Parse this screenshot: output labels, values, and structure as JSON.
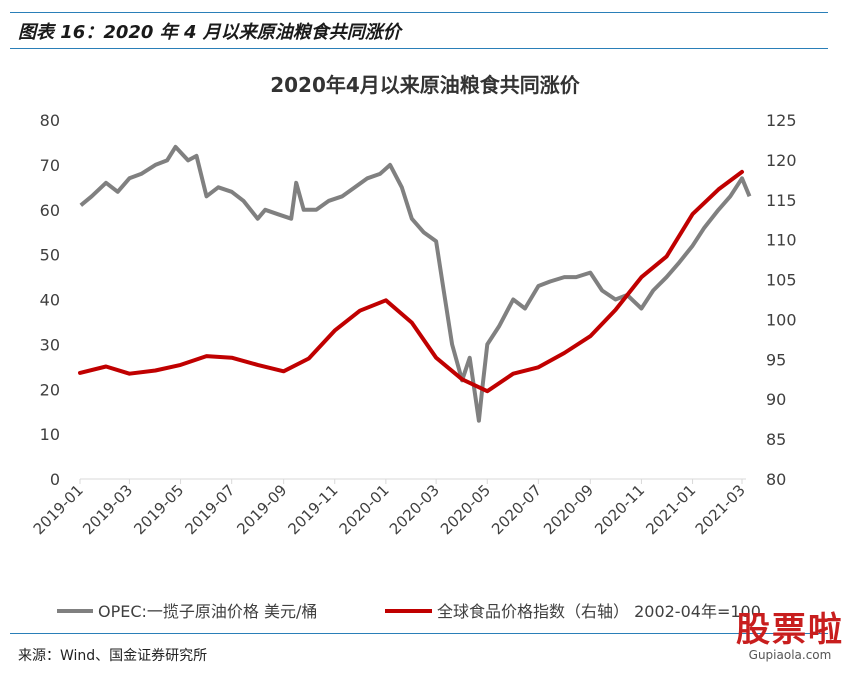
{
  "header": {
    "figure_title": "图表 16：2020 年 4 月以来原油粮食共同涨价"
  },
  "footer": {
    "source": "来源：Wind、国金证券研究所"
  },
  "watermark": {
    "text": "股票啦",
    "sub": "Gupiaola.com"
  },
  "colors": {
    "oil": "#808080",
    "food": "#c00000",
    "axis": "#d9d9d9",
    "rule": "#2a7fb8"
  },
  "chart_data": {
    "type": "line",
    "title": "2020年4月以来原油粮食共同涨价",
    "x_ticks": [
      "2019-01",
      "2019-03",
      "2019-05",
      "2019-07",
      "2019-09",
      "2019-11",
      "2020-01",
      "2020-03",
      "2020-05",
      "2020-07",
      "2020-09",
      "2020-11",
      "2021-01",
      "2021-03"
    ],
    "y_left": {
      "min": 0,
      "max": 80,
      "ticks": [
        0,
        10,
        20,
        30,
        40,
        50,
        60,
        70,
        80
      ]
    },
    "y_right": {
      "min": 80,
      "max": 125,
      "ticks": [
        80,
        85,
        90,
        95,
        100,
        105,
        110,
        115,
        120,
        125
      ]
    },
    "legend_position": "bottom",
    "series": [
      {
        "name": "OPEC:一揽子原油价格 美元/桶",
        "axis": "left",
        "x": [
          "2019-01-02",
          "2019-01-15",
          "2019-02-01",
          "2019-02-15",
          "2019-03-01",
          "2019-03-15",
          "2019-04-01",
          "2019-04-15",
          "2019-04-25",
          "2019-05-10",
          "2019-05-20",
          "2019-06-01",
          "2019-06-15",
          "2019-07-01",
          "2019-07-15",
          "2019-08-01",
          "2019-08-10",
          "2019-08-25",
          "2019-09-10",
          "2019-09-16",
          "2019-09-25",
          "2019-10-10",
          "2019-10-25",
          "2019-11-10",
          "2019-11-25",
          "2019-12-10",
          "2019-12-25",
          "2020-01-06",
          "2020-01-20",
          "2020-02-01",
          "2020-02-15",
          "2020-03-01",
          "2020-03-10",
          "2020-03-20",
          "2020-04-01",
          "2020-04-10",
          "2020-04-21",
          "2020-04-25",
          "2020-05-01",
          "2020-05-15",
          "2020-06-01",
          "2020-06-15",
          "2020-07-01",
          "2020-07-15",
          "2020-08-01",
          "2020-08-15",
          "2020-09-01",
          "2020-09-15",
          "2020-10-01",
          "2020-10-15",
          "2020-11-01",
          "2020-11-15",
          "2020-12-01",
          "2020-12-15",
          "2021-01-01",
          "2021-01-15",
          "2021-02-01",
          "2021-02-15",
          "2021-03-01",
          "2021-03-10"
        ],
        "values": [
          61,
          63,
          66,
          64,
          67,
          68,
          70,
          71,
          74,
          71,
          72,
          63,
          65,
          64,
          62,
          58,
          60,
          59,
          58,
          66,
          60,
          60,
          62,
          63,
          65,
          67,
          68,
          70,
          65,
          58,
          55,
          53,
          42,
          30,
          22,
          27,
          13,
          20,
          30,
          34,
          40,
          38,
          43,
          44,
          45,
          45,
          46,
          42,
          40,
          41,
          38,
          42,
          45,
          48,
          52,
          56,
          60,
          63,
          67,
          63
        ]
      },
      {
        "name": "全球食品价格指数（右轴） 2002-04年=100",
        "axis": "right",
        "x": [
          "2019-01-01",
          "2019-02-01",
          "2019-03-01",
          "2019-04-01",
          "2019-05-01",
          "2019-06-01",
          "2019-07-01",
          "2019-08-01",
          "2019-09-01",
          "2019-10-01",
          "2019-11-01",
          "2019-12-01",
          "2020-01-01",
          "2020-02-01",
          "2020-03-01",
          "2020-04-01",
          "2020-05-01",
          "2020-06-01",
          "2020-07-01",
          "2020-08-01",
          "2020-09-01",
          "2020-10-01",
          "2020-11-01",
          "2020-12-01",
          "2021-01-01",
          "2021-02-01",
          "2021-03-01"
        ],
        "values": [
          93.3,
          94.1,
          93.2,
          93.6,
          94.3,
          95.4,
          95.2,
          94.3,
          93.5,
          95.1,
          98.6,
          101.1,
          102.4,
          99.6,
          95.2,
          92.5,
          91.0,
          93.2,
          94.0,
          95.8,
          97.9,
          101.2,
          105.3,
          107.9,
          113.2,
          116.3,
          118.5
        ]
      }
    ]
  }
}
